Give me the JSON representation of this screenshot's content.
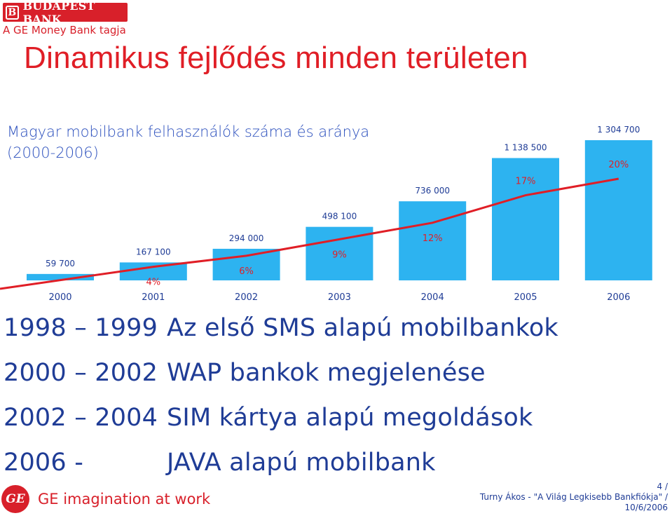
{
  "header": {
    "bank_logo": "BUDAPEST BANK",
    "bank_tagline": "A GE Money Bank tagja"
  },
  "slide_title": "Dinamikus fejlődés minden területen",
  "chart_data": {
    "type": "bar",
    "title": "Magyar mobilbank felhasználók száma és aránya (2000-2006)",
    "title_lines": [
      "Magyar mobilbank felhasználók száma és aránya",
      "(2000-2006)"
    ],
    "categories": [
      "2000",
      "2001",
      "2002",
      "2003",
      "2004",
      "2005",
      "2006"
    ],
    "series": [
      {
        "type": "bar",
        "values": [
          59700,
          167100,
          294000,
          498100,
          736000,
          1138500,
          1304700
        ],
        "labels": [
          "59 700",
          "167 100",
          "294 000",
          "498 100",
          "736 000",
          "1 138 500",
          "1 304 700"
        ],
        "color": "#2db3f0"
      },
      {
        "type": "line",
        "values": [
          null,
          4,
          6,
          9,
          12,
          17,
          20
        ],
        "labels": [
          "",
          "4%",
          "6%",
          "9%",
          "12%",
          "17%",
          "20%"
        ],
        "color": "#e01e26"
      }
    ],
    "grid": false,
    "legend": "none"
  },
  "timeline": [
    {
      "years": "1998 – 1999",
      "text": "Az első SMS alapú mobilbankok"
    },
    {
      "years": "2000 – 2002",
      "text": "WAP bankok megjelenése"
    },
    {
      "years": "2002 – 2004",
      "text": "SIM kártya alapú megoldások"
    },
    {
      "years": "2006 -",
      "text": "JAVA alapú mobilbank"
    }
  ],
  "footer": {
    "ge_logo": "GE",
    "ge_tagline": "GE imagination at work",
    "page": "4 /",
    "presenter": "Turny Ákos - \"A Világ Legkisebb Bankfiókja\" /",
    "date": "10/6/2006"
  },
  "colors": {
    "brand_red": "#e01e26",
    "bar_blue": "#2db3f0",
    "text_blue": "#1f3c96"
  }
}
